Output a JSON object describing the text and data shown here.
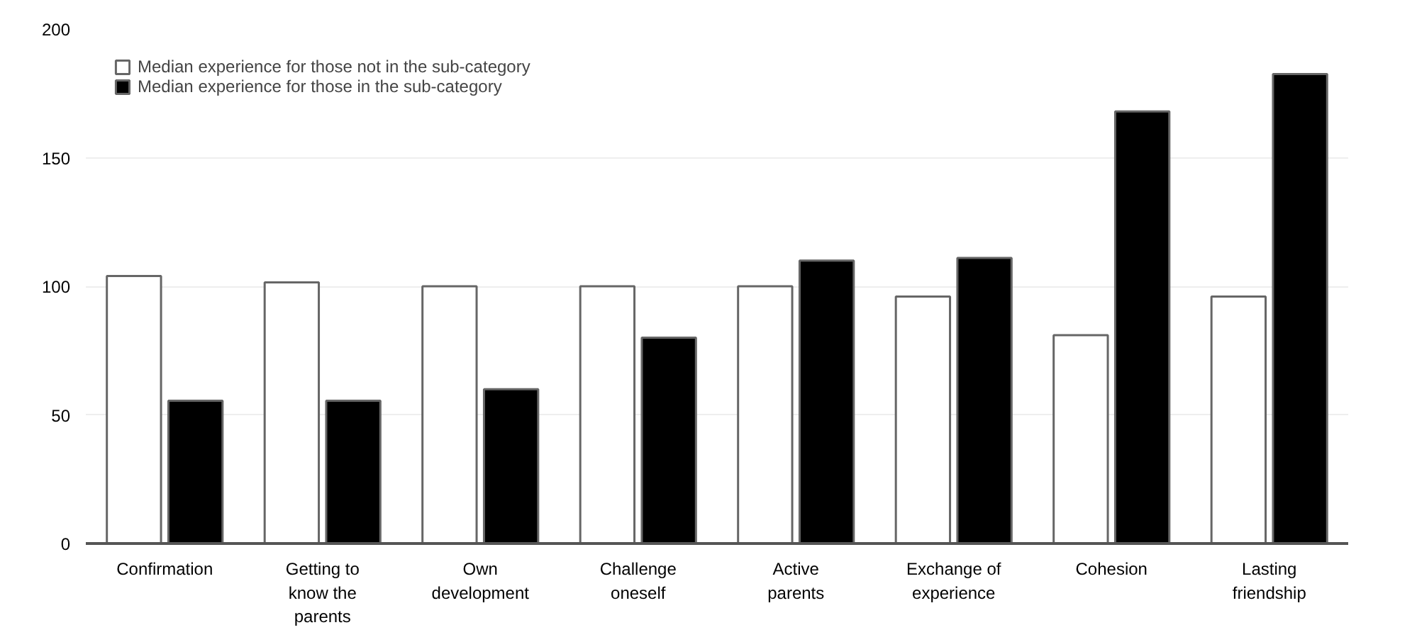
{
  "chart_data": {
    "type": "bar",
    "categories": [
      "Confirmation",
      "Getting to know the parents",
      "Own development",
      "Challenge oneself",
      "Active parents",
      "Exchange of experience",
      "Cohesion",
      "Lasting friendship"
    ],
    "series": [
      {
        "name": "Median experience for those not in the sub-category",
        "color": "#ffffff",
        "values": [
          104,
          101.5,
          100,
          100,
          100,
          96,
          81,
          96
        ]
      },
      {
        "name": "Median experience for those in the sub-category",
        "color": "#000000",
        "values": [
          55.5,
          55.5,
          60,
          80,
          110,
          111,
          168,
          182.5
        ]
      }
    ],
    "ylim": [
      0,
      200
    ],
    "yticks": [
      0,
      50,
      100,
      150,
      200
    ],
    "grid": "y",
    "legend": "top left"
  }
}
